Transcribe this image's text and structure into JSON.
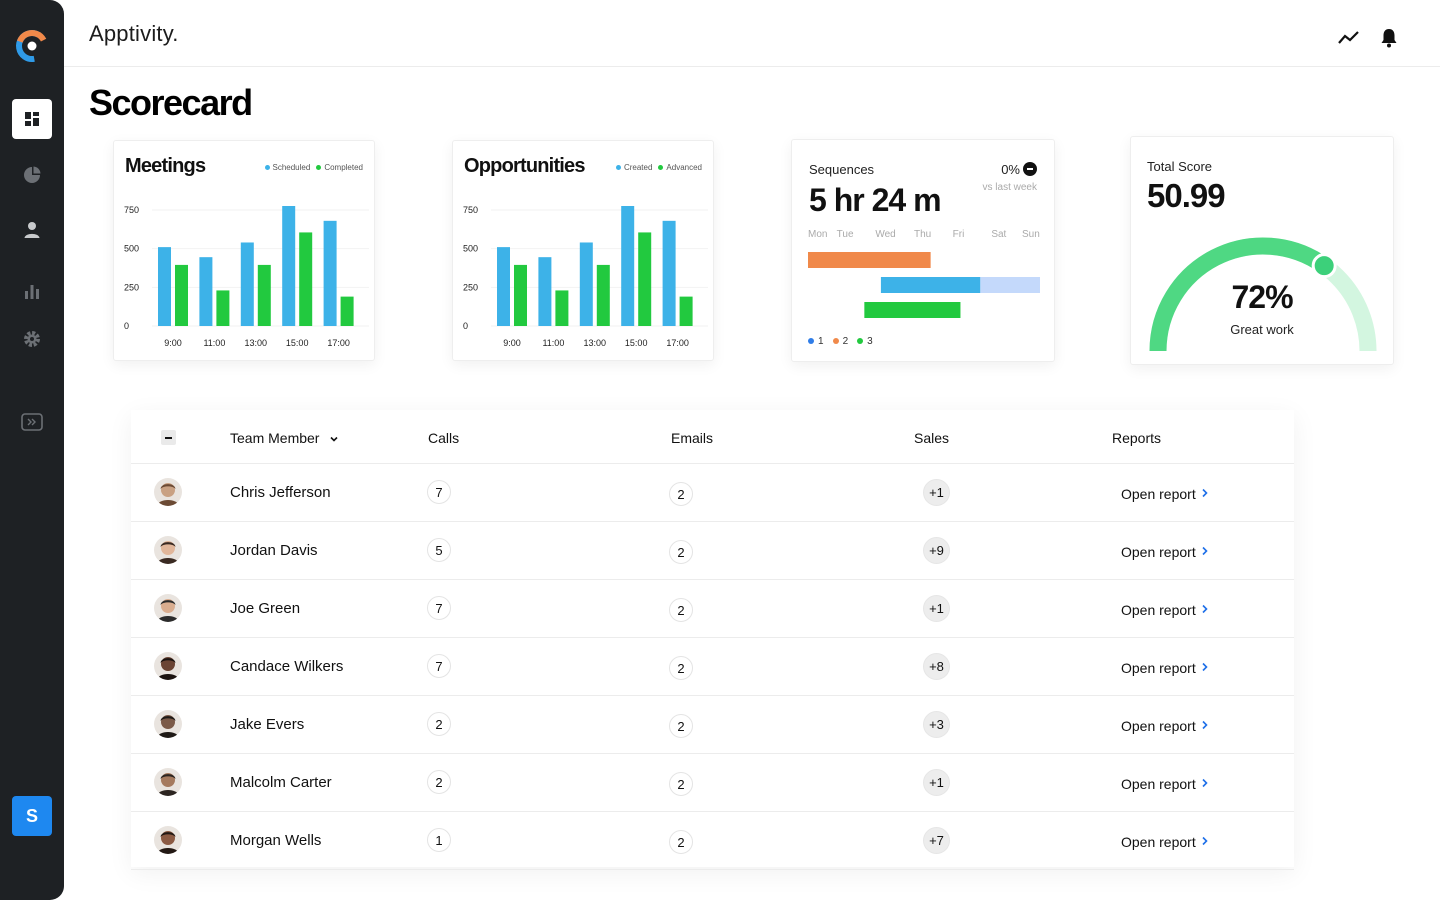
{
  "app": {
    "brand": "Apptivity."
  },
  "page": {
    "title": "Scorecard"
  },
  "sidebar": {
    "items": [
      {
        "icon": "dashboard-icon",
        "active": true
      },
      {
        "icon": "pie-chart-icon",
        "active": false
      },
      {
        "icon": "user-icon",
        "active": false
      },
      {
        "icon": "bar-chart-icon",
        "active": false
      },
      {
        "icon": "gear-icon",
        "active": false
      },
      {
        "icon": "expand-icon",
        "active": false
      }
    ],
    "user_initial": "S"
  },
  "topbar": {
    "icons": [
      "activity-icon",
      "bell-icon"
    ]
  },
  "meetings": {
    "title": "Meetings",
    "legend": [
      "Scheduled",
      "Completed"
    ],
    "chart_data": {
      "type": "bar",
      "x": [
        "9:00",
        "",
        "11:00",
        "",
        "13:00",
        "",
        "15:00",
        "",
        "17:00",
        ""
      ],
      "categories": [
        "9:00",
        "11:00",
        "13:00",
        "15:00",
        "17:00"
      ],
      "y_ticks": [
        "750",
        "500",
        "250",
        "0"
      ],
      "ylim": [
        0,
        750
      ],
      "series": [
        {
          "name": "Scheduled",
          "color": "#3db2e8",
          "values": [
            510,
            445,
            540,
            785,
            680
          ]
        },
        {
          "name": "Completed",
          "color": "#22c93f",
          "values": [
            395,
            230,
            395,
            605,
            190
          ]
        }
      ]
    }
  },
  "opportunities": {
    "title": "Opportunities",
    "legend": [
      "Created",
      "Advanced"
    ],
    "chart_data": {
      "type": "bar",
      "categories": [
        "9:00",
        "11:00",
        "13:00",
        "15:00",
        "17:00"
      ],
      "y_ticks": [
        "750",
        "500",
        "250",
        "0"
      ],
      "ylim": [
        0,
        750
      ],
      "series": [
        {
          "name": "Created",
          "color": "#3db2e8",
          "values": [
            510,
            445,
            540,
            785,
            680
          ]
        },
        {
          "name": "Advanced",
          "color": "#22c93f",
          "values": [
            395,
            230,
            395,
            605,
            190
          ]
        }
      ]
    }
  },
  "sequences": {
    "label": "Sequences",
    "value": "5 hr 24 m",
    "change": "0%",
    "change_sub": "vs last week",
    "days": [
      "Mon",
      "Tue",
      "Wed",
      "Thu",
      "Fri",
      "Sat",
      "Sun"
    ],
    "legend": [
      "1",
      "2",
      "3"
    ],
    "chart_data": {
      "type": "bar",
      "orientation": "horizontal",
      "series": [
        {
          "name": "1",
          "color": "#f0894a",
          "start": 0,
          "end": 3.7
        },
        {
          "name": "2",
          "color": "#3db2e8",
          "start": 2.2,
          "end": 5.2,
          "extension_end": 7,
          "extension_color": "#c4d9fb"
        },
        {
          "name": "3",
          "color": "#22c93f",
          "start": 1.7,
          "end": 4.6
        }
      ]
    }
  },
  "total_score": {
    "label": "Total Score",
    "value": "50.99",
    "gauge_percent": "72%",
    "gauge_fraction": 0.72,
    "caption": "Great work"
  },
  "table": {
    "headers": {
      "member": "Team Member",
      "calls": "Calls",
      "emails": "Emails",
      "sales": "Sales",
      "reports": "Reports"
    },
    "rows": [
      {
        "name": "Chris Jefferson",
        "calls": "7",
        "emails": "2",
        "sales": "+1",
        "report": "Open report",
        "skin": "#c9a183",
        "hair": "#6b4a34"
      },
      {
        "name": "Jordan Davis",
        "calls": "5",
        "emails": "2",
        "sales": "+9",
        "report": "Open report",
        "skin": "#e1b69a",
        "hair": "#3a2a22"
      },
      {
        "name": "Joe Green",
        "calls": "7",
        "emails": "2",
        "sales": "+1",
        "report": "Open report",
        "skin": "#d9ad8f",
        "hair": "#2b2b2b"
      },
      {
        "name": "Candace Wilkers",
        "calls": "7",
        "emails": "2",
        "sales": "+8",
        "report": "Open report",
        "skin": "#6b4434",
        "hair": "#1c1310"
      },
      {
        "name": "Jake Evers",
        "calls": "2",
        "emails": "2",
        "sales": "+3",
        "report": "Open report",
        "skin": "#7b5a48",
        "hair": "#1f1a16"
      },
      {
        "name": "Malcolm Carter",
        "calls": "2",
        "emails": "2",
        "sales": "+1",
        "report": "Open report",
        "skin": "#a57a5e",
        "hair": "#2c2521"
      },
      {
        "name": "Morgan Wells",
        "calls": "1",
        "emails": "2",
        "sales": "+7",
        "report": "Open report",
        "skin": "#8b5a43",
        "hair": "#231914"
      }
    ]
  }
}
